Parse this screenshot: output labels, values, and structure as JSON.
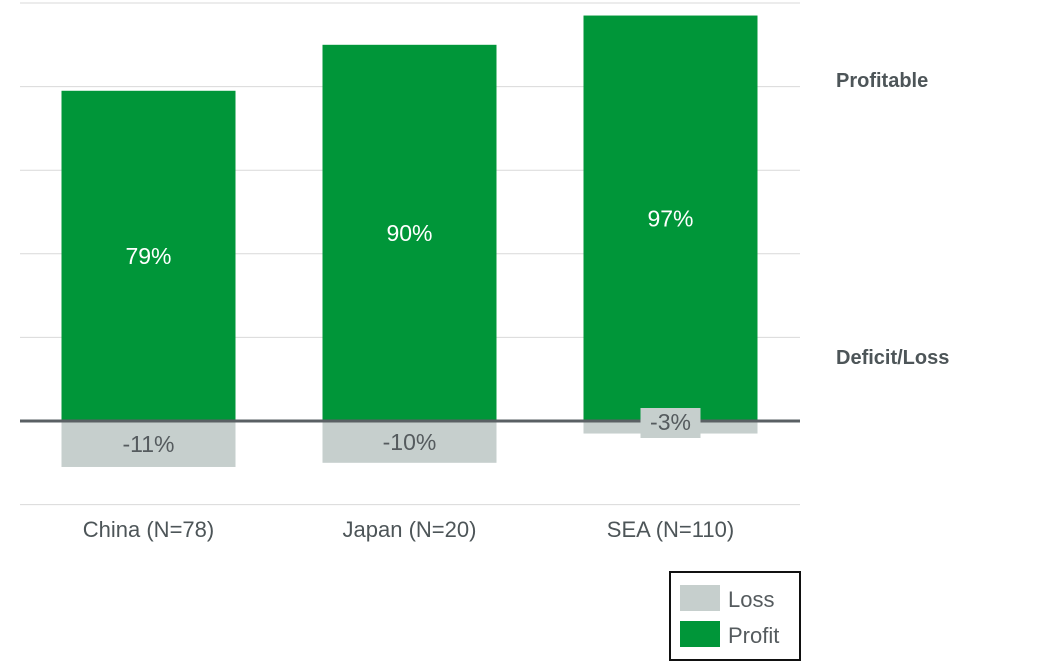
{
  "chart_data": {
    "type": "bar",
    "categories": [
      "China (N=78)",
      "Japan (N=20)",
      "SEA (N=110)"
    ],
    "series": [
      {
        "name": "Profit",
        "values": [
          79,
          90,
          97
        ],
        "labels": [
          "79%",
          "90%",
          "97%"
        ],
        "color": "#009639"
      },
      {
        "name": "Loss",
        "values": [
          -11,
          -10,
          -3
        ],
        "labels": [
          "-11%",
          "-10%",
          "-3%"
        ],
        "color": "#c6cfcd"
      }
    ],
    "ylim": [
      -20,
      100
    ],
    "unit": "%",
    "grid": true,
    "zero_line_color": "#5a6064",
    "grid_color": "#d9d9d9",
    "legend": {
      "placement": "bottom-right",
      "order": [
        "Loss",
        "Profit"
      ]
    },
    "annotations": {
      "upper": "Profitable",
      "lower": "Deficit/Loss"
    },
    "title": "",
    "xlabel": "",
    "ylabel": ""
  }
}
